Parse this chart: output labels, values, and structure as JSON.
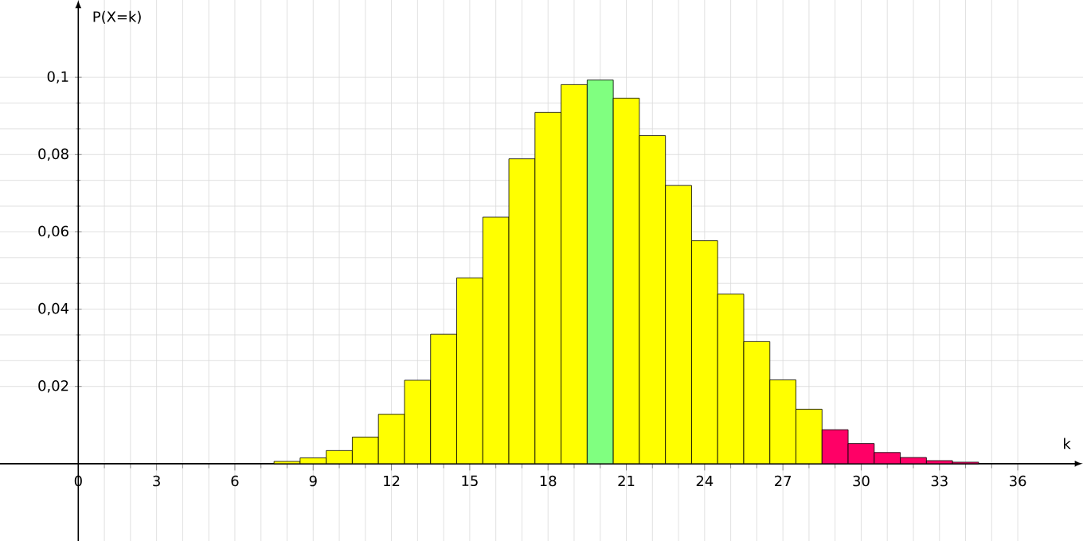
{
  "chart_data": {
    "type": "bar",
    "xlabel": "k",
    "ylabel": "P(X=k)",
    "x": [
      8,
      9,
      10,
      11,
      12,
      13,
      14,
      15,
      16,
      17,
      18,
      19,
      20,
      21,
      22,
      23,
      24,
      25,
      26,
      27,
      28,
      29,
      30,
      31,
      32,
      33,
      34
    ],
    "values": [
      0.0006,
      0.0015,
      0.0034,
      0.0069,
      0.0128,
      0.0216,
      0.0335,
      0.0481,
      0.0638,
      0.0789,
      0.0909,
      0.0981,
      0.0993,
      0.0946,
      0.0849,
      0.072,
      0.0577,
      0.0439,
      0.0316,
      0.0217,
      0.0141,
      0.0088,
      0.0052,
      0.0029,
      0.0016,
      0.0008,
      0.0004
    ],
    "colors": [
      "#ffff00",
      "#ffff00",
      "#ffff00",
      "#ffff00",
      "#ffff00",
      "#ffff00",
      "#ffff00",
      "#ffff00",
      "#ffff00",
      "#ffff00",
      "#ffff00",
      "#ffff00",
      "#80ff80",
      "#ffff00",
      "#ffff00",
      "#ffff00",
      "#ffff00",
      "#ffff00",
      "#ffff00",
      "#ffff00",
      "#ffff00",
      "#ff0066",
      "#ff0066",
      "#ff0066",
      "#ff0066",
      "#ff0066",
      "#ff0066"
    ],
    "xlim": [
      -3,
      38.5
    ],
    "ylim": [
      -0.02,
      0.12
    ],
    "xticks": [
      0,
      3,
      6,
      9,
      12,
      15,
      18,
      21,
      24,
      27,
      30,
      33,
      36
    ],
    "yticks": [
      {
        "value": 0.02,
        "label": "0,02"
      },
      {
        "value": 0.04,
        "label": "0,04"
      },
      {
        "value": 0.06,
        "label": "0,06"
      },
      {
        "value": 0.08,
        "label": "0,08"
      },
      {
        "value": 0.1,
        "label": "0,1"
      }
    ],
    "grid": true
  }
}
